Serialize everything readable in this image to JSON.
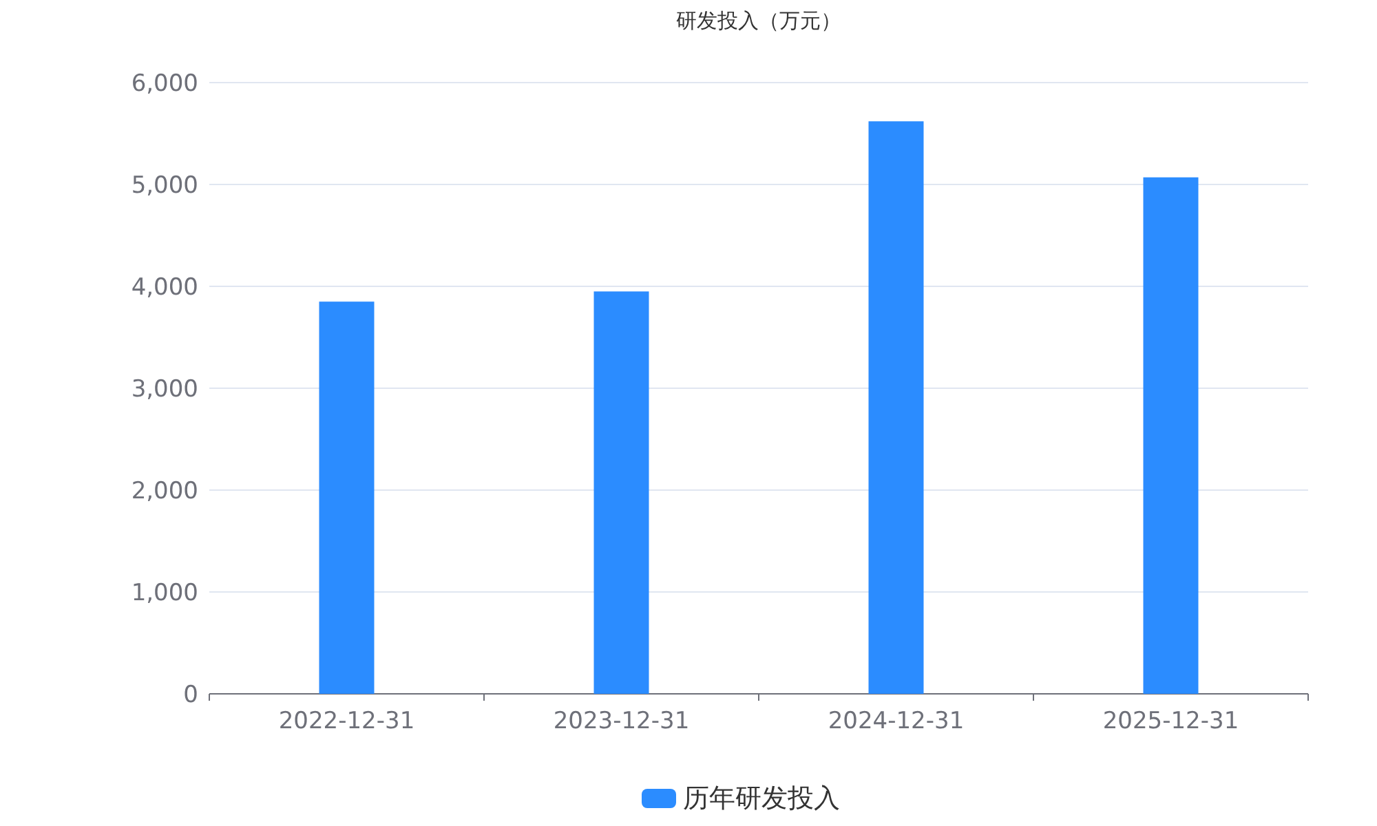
{
  "chart_data": {
    "type": "bar",
    "title": "研发投入（万元）",
    "categories": [
      "2022-12-31",
      "2023-12-31",
      "2024-12-31",
      "2025-12-31"
    ],
    "series": [
      {
        "name": "历年研发投入",
        "color": "#2b8cff",
        "values": [
          3850,
          3950,
          5620,
          5070
        ]
      }
    ],
    "ylim": [
      0,
      6000
    ],
    "yticks": [
      {
        "value": 0,
        "label": "0"
      },
      {
        "value": 1000,
        "label": "1,000"
      },
      {
        "value": 2000,
        "label": "2,000"
      },
      {
        "value": 3000,
        "label": "3,000"
      },
      {
        "value": 4000,
        "label": "4,000"
      },
      {
        "value": 5000,
        "label": "5,000"
      },
      {
        "value": 6000,
        "label": "6,000"
      }
    ],
    "grid": "y",
    "legend": "bottom"
  }
}
